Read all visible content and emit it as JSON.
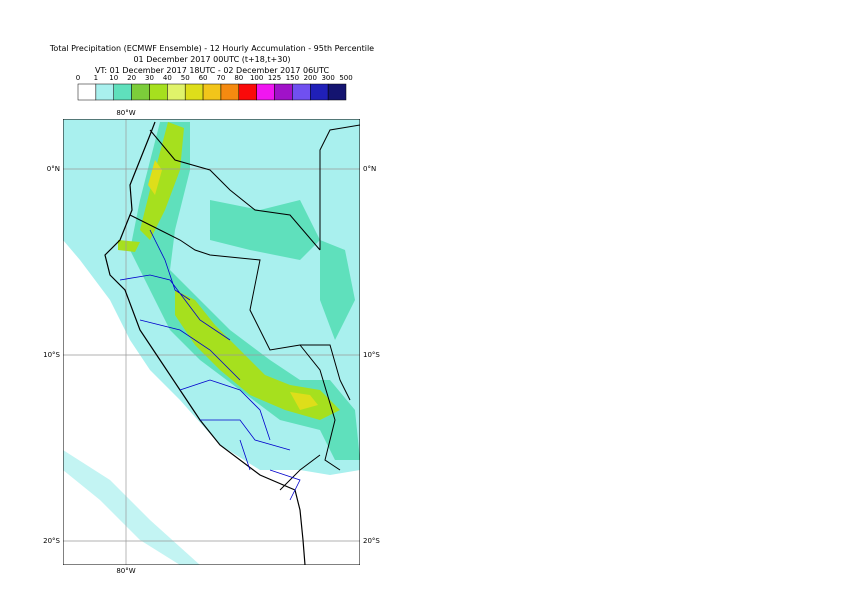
{
  "header": {
    "title": "Total Precipitation (ECMWF Ensemble) - 12 Hourly Accumulation - 95th Percentile",
    "run": "01 December 2017 00UTC (t+18,t+30)",
    "valid": "VT: 01 December 2017 18UTC - 02 December 2017 06UTC"
  },
  "legend": {
    "labels": [
      "0",
      "1",
      "10",
      "20",
      "30",
      "40",
      "50",
      "60",
      "70",
      "80",
      "100",
      "125",
      "150",
      "200",
      "300",
      "500"
    ],
    "colors": [
      "#ffffff",
      "#a9f0ee",
      "#5fe0bc",
      "#7ccd3a",
      "#a6e01e",
      "#e0f36a",
      "#dede1a",
      "#f2c51a",
      "#f58a10",
      "#fa0a0a",
      "#f016f0",
      "#a012c8",
      "#7050f0",
      "#2020b8",
      "#141470"
    ]
  },
  "map": {
    "lon_top": "80°W",
    "lon_bottom": "80°W",
    "lat_left": [
      "0°N",
      "10°S",
      "20°S"
    ],
    "lat_right": [
      "0°N",
      "10°S",
      "20°S"
    ]
  }
}
